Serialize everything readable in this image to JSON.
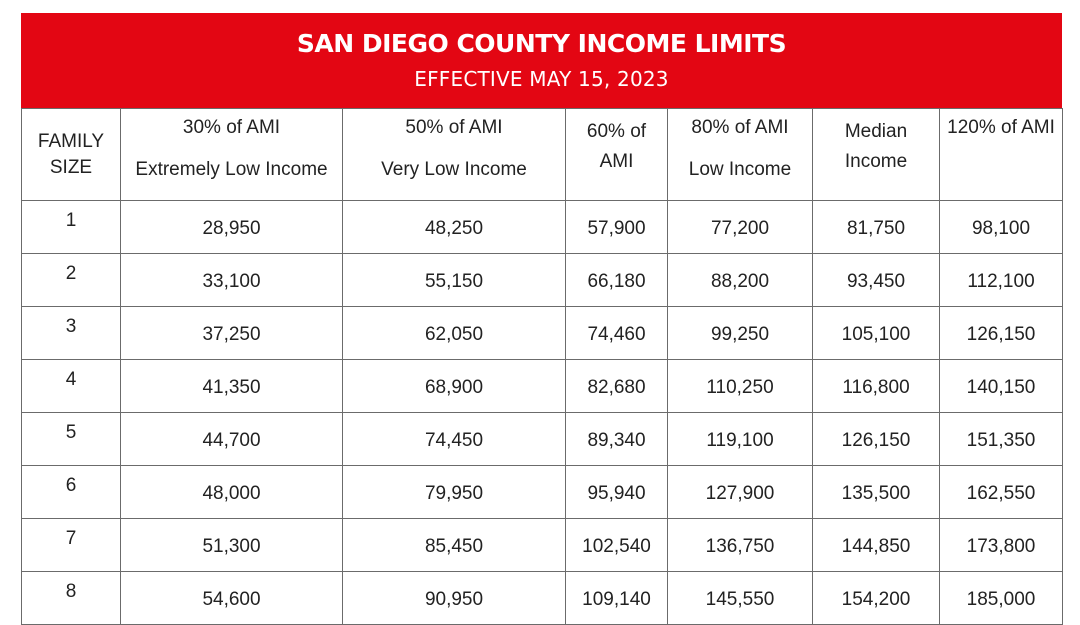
{
  "header": {
    "title": "SAN DIEGO COUNTY INCOME LIMITS",
    "subtitle": "EFFECTIVE MAY 15, 2023"
  },
  "table": {
    "columns": [
      {
        "line1": "FAMILY",
        "line2": "SIZE"
      },
      {
        "line1": "30% of AMI",
        "line2": "Extremely Low Income"
      },
      {
        "line1": "50% of AMI",
        "line2": "Very Low Income"
      },
      {
        "line1": "60% of",
        "line2": "AMI"
      },
      {
        "line1": "80% of AMI",
        "line2": "Low Income"
      },
      {
        "line1": "Median",
        "line2": "Income"
      },
      {
        "line1": "120% of AMI",
        "line2": ""
      }
    ],
    "rows": [
      [
        "1",
        "28,950",
        "48,250",
        "57,900",
        "77,200",
        "81,750",
        "98,100"
      ],
      [
        "2",
        "33,100",
        "55,150",
        "66,180",
        "88,200",
        "93,450",
        "112,100"
      ],
      [
        "3",
        "37,250",
        "62,050",
        "74,460",
        "99,250",
        "105,100",
        "126,150"
      ],
      [
        "4",
        "41,350",
        "68,900",
        "82,680",
        "110,250",
        "116,800",
        "140,150"
      ],
      [
        "5",
        "44,700",
        "74,450",
        "89,340",
        "119,100",
        "126,150",
        "151,350"
      ],
      [
        "6",
        "48,000",
        "79,950",
        "95,940",
        "127,900",
        "135,500",
        "162,550"
      ],
      [
        "7",
        "51,300",
        "85,450",
        "102,540",
        "136,750",
        "144,850",
        "173,800"
      ],
      [
        "8",
        "54,600",
        "90,950",
        "109,140",
        "145,550",
        "154,200",
        "185,000"
      ]
    ]
  },
  "colors": {
    "banner": "#e30613",
    "grid": "#6b6b6b"
  }
}
